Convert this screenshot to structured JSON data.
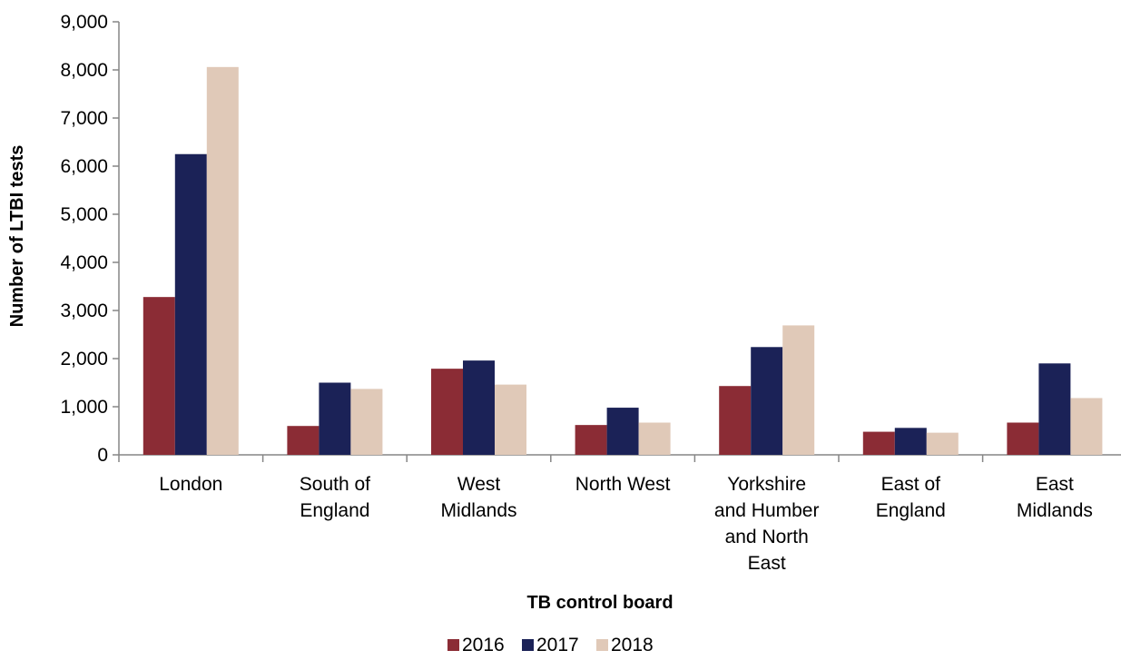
{
  "chart_data": {
    "type": "bar",
    "categories": [
      [
        "London"
      ],
      [
        "South of",
        "England"
      ],
      [
        "West",
        "Midlands"
      ],
      [
        "North West"
      ],
      [
        "Yorkshire",
        "and Humber",
        "and North",
        "East"
      ],
      [
        "East of",
        "England"
      ],
      [
        "East",
        "Midlands"
      ]
    ],
    "series": [
      {
        "name": "2016",
        "color": "#8b2c35",
        "values": [
          3280,
          600,
          1790,
          620,
          1430,
          480,
          670
        ]
      },
      {
        "name": "2017",
        "color": "#1b2257",
        "values": [
          6250,
          1500,
          1960,
          980,
          2240,
          560,
          1900
        ]
      },
      {
        "name": "2018",
        "color": "#e0c9b8",
        "values": [
          8060,
          1370,
          1460,
          670,
          2690,
          460,
          1180
        ]
      }
    ],
    "xlabel": "TB control board",
    "ylabel": "Number of LTBI tests",
    "ylim": [
      0,
      9000
    ],
    "yticks": [
      "0",
      "1,000",
      "2,000",
      "3,000",
      "4,000",
      "5,000",
      "6,000",
      "7,000",
      "8,000",
      "9,000"
    ],
    "grid": false,
    "legend_position": "bottom-center"
  }
}
